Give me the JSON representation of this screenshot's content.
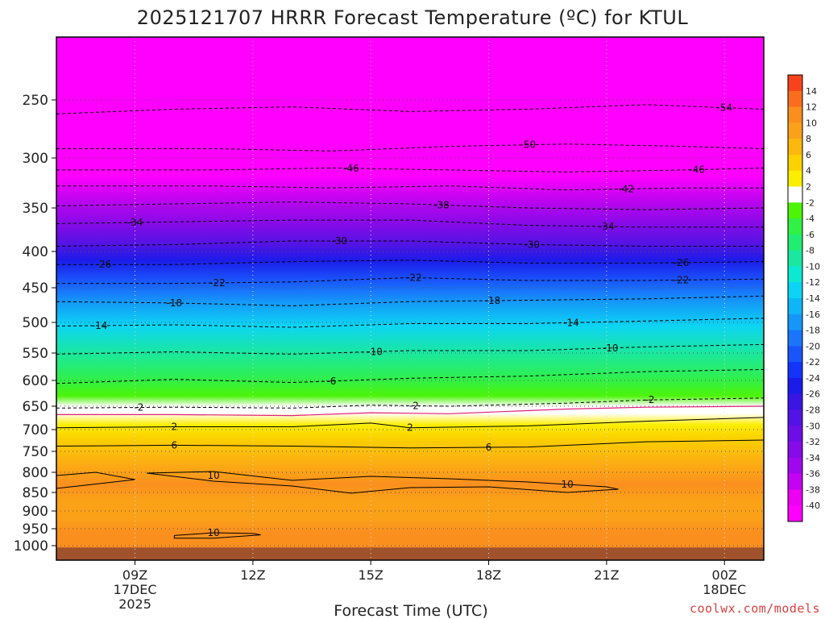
{
  "chart_data": {
    "type": "heatmap",
    "title": "2025121707 HRRR Forecast Temperature (ºC) for KTUL",
    "xlabel": "Forecast Time (UTC)",
    "ylabel": "",
    "credit": "coolwx.com/models",
    "x_ticks": [
      {
        "time": 9,
        "lines": [
          "09Z",
          "17DEC",
          "2025"
        ]
      },
      {
        "time": 12,
        "lines": [
          "12Z"
        ]
      },
      {
        "time": 15,
        "lines": [
          "15Z"
        ]
      },
      {
        "time": 18,
        "lines": [
          "18Z"
        ]
      },
      {
        "time": 21,
        "lines": [
          "21Z"
        ]
      },
      {
        "time": 24,
        "lines": [
          "00Z",
          "18DEC"
        ]
      }
    ],
    "xlim_hours": [
      7,
      25
    ],
    "y_ticks": [
      250,
      300,
      350,
      400,
      450,
      500,
      550,
      600,
      650,
      700,
      750,
      800,
      850,
      900,
      950,
      1000
    ],
    "ylim_hPa": [
      200,
      1040
    ],
    "colorbar_labels": [
      14,
      12,
      10,
      8,
      6,
      4,
      2,
      -2,
      -4,
      -6,
      -8,
      -10,
      -12,
      -14,
      -16,
      -18,
      -20,
      -22,
      -24,
      -26,
      -28,
      -30,
      -32,
      -34,
      -36,
      -38,
      -40
    ],
    "colorbar_colors": [
      "#f7431b",
      "#f96e1e",
      "#fb8f1e",
      "#fba117",
      "#fbb80e",
      "#fbd100",
      "#fbee00",
      "#ffffff",
      "#4cf408",
      "#31f046",
      "#21ed72",
      "#1ae8a0",
      "#0ce9d2",
      "#0cd4f4",
      "#0fb6f7",
      "#1597f9",
      "#1a75fa",
      "#1a55fb",
      "#1434fb",
      "#1c1be9",
      "#3a15e4",
      "#5214e4",
      "#6e0ee6",
      "#870ae8",
      "#a007ec",
      "#c303f1",
      "#ee00f2",
      "#ff00ff"
    ],
    "temperature_profile": [
      {
        "p": 230,
        "t": -56
      },
      {
        "p": 255,
        "t": -54
      },
      {
        "p": 280,
        "t": -50
      },
      {
        "p": 300,
        "t": -46
      },
      {
        "p": 318,
        "t": -42
      },
      {
        "p": 340,
        "t": -38
      },
      {
        "p": 368,
        "t": -34
      },
      {
        "p": 392,
        "t": -30
      },
      {
        "p": 412,
        "t": -26
      },
      {
        "p": 440,
        "t": -22
      },
      {
        "p": 470,
        "t": -18
      },
      {
        "p": 505,
        "t": -14
      },
      {
        "p": 550,
        "t": -10
      },
      {
        "p": 600,
        "t": -6
      },
      {
        "p": 630,
        "t": -3
      },
      {
        "p": 650,
        "t": -1
      },
      {
        "p": 665,
        "t": 1
      },
      {
        "p": 690,
        "t": 3
      },
      {
        "p": 720,
        "t": 5
      },
      {
        "p": 760,
        "t": 7
      },
      {
        "p": 800,
        "t": 9
      },
      {
        "p": 830,
        "t": 10.5
      },
      {
        "p": 870,
        "t": 8
      },
      {
        "p": 920,
        "t": 9
      },
      {
        "p": 960,
        "t": 10
      },
      {
        "p": 1000,
        "t": 11
      }
    ],
    "contours": [
      {
        "label": "-54",
        "label_time": 24.0,
        "points": [
          [
            7,
            262
          ],
          [
            10,
            258
          ],
          [
            13,
            256
          ],
          [
            16,
            260
          ],
          [
            19,
            258
          ],
          [
            22,
            254
          ],
          [
            25,
            258
          ]
        ]
      },
      {
        "label": "-50",
        "label_time": 19.0,
        "points": [
          [
            7,
            292
          ],
          [
            11,
            292
          ],
          [
            14,
            294
          ],
          [
            17,
            290
          ],
          [
            20,
            288
          ],
          [
            23,
            290
          ],
          [
            25,
            292
          ]
        ]
      },
      {
        "label": "-46",
        "label_time": 14.5,
        "points": [
          [
            7,
            312
          ],
          [
            11,
            312
          ],
          [
            14,
            310
          ],
          [
            17,
            312
          ],
          [
            20,
            314
          ],
          [
            23,
            312
          ],
          [
            25,
            310
          ]
        ]
      },
      {
        "label": "-46",
        "label_time": 23.3,
        "points": []
      },
      {
        "label": "-42",
        "label_time": 21.5,
        "points": [
          [
            7,
            328
          ],
          [
            11,
            328
          ],
          [
            14,
            330
          ],
          [
            17,
            328
          ],
          [
            20,
            332
          ],
          [
            23,
            330
          ],
          [
            25,
            330
          ]
        ]
      },
      {
        "label": "-38",
        "label_time": 16.8,
        "points": [
          [
            7,
            348
          ],
          [
            10,
            346
          ],
          [
            13,
            344
          ],
          [
            16,
            346
          ],
          [
            19,
            350
          ],
          [
            22,
            352
          ],
          [
            25,
            350
          ]
        ]
      },
      {
        "label": "-34",
        "label_time": 9.0,
        "points": [
          [
            7,
            368
          ],
          [
            10,
            366
          ],
          [
            13,
            364
          ],
          [
            16,
            364
          ],
          [
            19,
            370
          ],
          [
            22,
            372
          ],
          [
            25,
            372
          ]
        ]
      },
      {
        "label": "-34",
        "label_time": 21.0,
        "points": []
      },
      {
        "label": "-30",
        "label_time": 14.2,
        "points": [
          [
            7,
            394
          ],
          [
            10,
            392
          ],
          [
            13,
            388
          ],
          [
            16,
            388
          ],
          [
            19,
            392
          ],
          [
            22,
            394
          ],
          [
            25,
            394
          ]
        ]
      },
      {
        "label": "-30",
        "label_time": 19.1,
        "points": []
      },
      {
        "label": "-26",
        "label_time": 8.2,
        "points": [
          [
            7,
            418
          ],
          [
            10,
            418
          ],
          [
            13,
            414
          ],
          [
            16,
            412
          ],
          [
            19,
            416
          ],
          [
            22,
            416
          ],
          [
            25,
            414
          ]
        ]
      },
      {
        "label": "-26",
        "label_time": 22.9,
        "points": []
      },
      {
        "label": "-22",
        "label_time": 11.1,
        "points": [
          [
            7,
            444
          ],
          [
            10,
            444
          ],
          [
            13,
            442
          ],
          [
            16,
            436
          ],
          [
            19,
            440
          ],
          [
            22,
            440
          ],
          [
            25,
            438
          ]
        ]
      },
      {
        "label": "-22",
        "label_time": 16.1,
        "points": []
      },
      {
        "label": "-22",
        "label_time": 22.9,
        "points": []
      },
      {
        "label": "-18",
        "label_time": 10.0,
        "points": [
          [
            7,
            470
          ],
          [
            10,
            472
          ],
          [
            13,
            476
          ],
          [
            16,
            470
          ],
          [
            19,
            468
          ],
          [
            22,
            466
          ],
          [
            25,
            462
          ]
        ]
      },
      {
        "label": "-18",
        "label_time": 18.1,
        "points": []
      },
      {
        "label": "-14",
        "label_time": 8.1,
        "points": [
          [
            7,
            506
          ],
          [
            10,
            504
          ],
          [
            13,
            508
          ],
          [
            16,
            502
          ],
          [
            19,
            502
          ],
          [
            22,
            498
          ],
          [
            25,
            494
          ]
        ]
      },
      {
        "label": "-14",
        "label_time": 20.1,
        "points": []
      },
      {
        "label": "-10",
        "label_time": 15.1,
        "points": [
          [
            7,
            552
          ],
          [
            10,
            548
          ],
          [
            13,
            552
          ],
          [
            16,
            546
          ],
          [
            19,
            546
          ],
          [
            22,
            540
          ],
          [
            25,
            536
          ]
        ]
      },
      {
        "label": "-10",
        "label_time": 21.1,
        "points": []
      },
      {
        "label": "-6",
        "label_time": 14.0,
        "points": [
          [
            7,
            606
          ],
          [
            10,
            598
          ],
          [
            13,
            604
          ],
          [
            16,
            596
          ],
          [
            19,
            592
          ],
          [
            22,
            584
          ],
          [
            25,
            580
          ]
        ]
      },
      {
        "label": "-2",
        "label_time": 9.1,
        "points": [
          [
            7,
            654
          ],
          [
            10,
            652
          ],
          [
            13,
            654
          ],
          [
            15,
            648
          ],
          [
            17,
            650
          ],
          [
            20,
            644
          ],
          [
            22,
            638
          ],
          [
            25,
            634
          ]
        ]
      },
      {
        "label": "-2",
        "label_time": 16.1,
        "points": []
      },
      {
        "label": "-2",
        "label_time": 22.1,
        "points": []
      },
      {
        "label": "2",
        "label_time": 10.0,
        "points": [
          [
            7,
            696
          ],
          [
            10,
            694
          ],
          [
            13,
            694
          ],
          [
            15,
            686
          ],
          [
            16,
            696
          ],
          [
            19,
            692
          ],
          [
            22,
            682
          ],
          [
            25,
            674
          ]
        ]
      },
      {
        "label": "2",
        "label_time": 16.0,
        "points": []
      },
      {
        "label": "6",
        "label_time": 10.0,
        "points": [
          [
            7,
            738
          ],
          [
            10,
            736
          ],
          [
            13,
            738
          ],
          [
            16,
            742
          ],
          [
            19,
            740
          ],
          [
            22,
            728
          ],
          [
            25,
            724
          ]
        ]
      },
      {
        "label": "6",
        "label_time": 18.0,
        "points": []
      },
      {
        "label": "10",
        "label_time": 11.0,
        "points": [
          [
            7,
            808
          ],
          [
            8,
            800
          ],
          [
            9,
            818
          ],
          [
            7,
            840
          ]
        ]
      },
      {
        "label": "10",
        "label_time": 20.0,
        "points": [
          [
            9.3,
            802
          ],
          [
            11,
            798
          ],
          [
            13,
            820
          ],
          [
            15,
            810
          ],
          [
            17,
            816
          ],
          [
            19,
            824
          ],
          [
            21,
            836
          ],
          [
            21.3,
            842
          ],
          [
            20,
            850
          ],
          [
            18,
            836
          ],
          [
            16,
            838
          ],
          [
            14.5,
            852
          ],
          [
            13,
            834
          ],
          [
            11,
            822
          ],
          [
            9.3,
            802
          ]
        ]
      },
      {
        "label": "10",
        "label_time": 11.0,
        "points": [
          [
            10,
            970
          ],
          [
            11,
            962
          ],
          [
            12,
            964
          ],
          [
            12.2,
            968
          ],
          [
            11,
            978
          ],
          [
            10,
            978
          ],
          [
            10,
            970
          ]
        ]
      }
    ],
    "freezing_line_points": [
      [
        7,
        668
      ],
      [
        10,
        668
      ],
      [
        13,
        670
      ],
      [
        15,
        664
      ],
      [
        17,
        666
      ],
      [
        20,
        656
      ],
      [
        22,
        652
      ],
      [
        25,
        650
      ]
    ]
  }
}
